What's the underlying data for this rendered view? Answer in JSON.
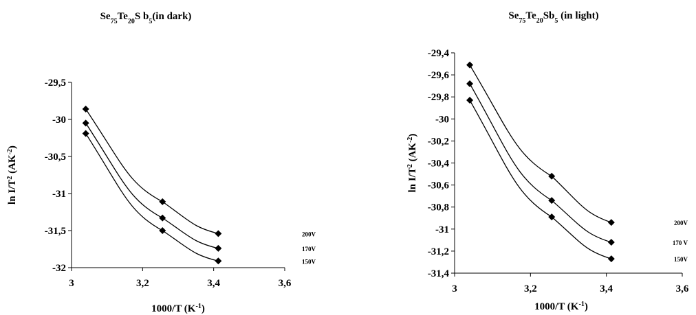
{
  "chart_data": [
    {
      "type": "line",
      "title_main": "Se",
      "title_parts": [
        {
          "t": "Se",
          "s": "n"
        },
        {
          "t": "75",
          "s": "sub"
        },
        {
          "t": "Te",
          "s": "n"
        },
        {
          "t": "20",
          "s": "sub"
        },
        {
          "t": "S b",
          "s": "n"
        },
        {
          "t": "5",
          "s": "sub"
        },
        {
          "t": "(in dark)",
          "s": "n"
        }
      ],
      "xlabel_parts": [
        {
          "t": "1000/T (K",
          "s": "n"
        },
        {
          "t": "-1",
          "s": "sup"
        },
        {
          "t": ")",
          "s": "n"
        }
      ],
      "ylabel_parts": [
        {
          "t": "ln I/T",
          "s": "n"
        },
        {
          "t": "2",
          "s": "sup"
        },
        {
          "t": " (AK",
          "s": "n"
        },
        {
          "t": "-2",
          "s": "sup"
        },
        {
          "t": ")",
          "s": "n"
        }
      ],
      "xlim": [
        3,
        3.6
      ],
      "ylim": [
        -32,
        -29.5
      ],
      "xticks": [
        3,
        3.2,
        3.4,
        3.6
      ],
      "xtick_labels": [
        "3",
        "3,2",
        "3,4",
        "3,6"
      ],
      "yticks": [
        -29.5,
        -30,
        -30.5,
        -31,
        -31.5,
        -32
      ],
      "ytick_labels": [
        "-29,5",
        "-30",
        "-30,5",
        "-31",
        "-31,5",
        "-32"
      ],
      "x": [
        3.04,
        3.256,
        3.413
      ],
      "series": [
        {
          "name": "200V",
          "values": [
            -29.86,
            -31.11,
            -31.54
          ]
        },
        {
          "name": "170V",
          "values": [
            -30.05,
            -31.33,
            -31.74
          ]
        },
        {
          "name": "150V",
          "values": [
            -30.19,
            -31.5,
            -31.91
          ]
        }
      ]
    },
    {
      "type": "line",
      "title_parts": [
        {
          "t": "Se",
          "s": "n"
        },
        {
          "t": "75",
          "s": "sub"
        },
        {
          "t": "Te",
          "s": "n"
        },
        {
          "t": "20",
          "s": "sub"
        },
        {
          "t": "Sb",
          "s": "n"
        },
        {
          "t": "5",
          "s": "sub"
        },
        {
          "t": " (in light)",
          "s": "n"
        }
      ],
      "xlabel_parts": [
        {
          "t": "1000/T (K",
          "s": "n"
        },
        {
          "t": "-1",
          "s": "sup"
        },
        {
          "t": ")",
          "s": "n"
        }
      ],
      "ylabel_parts": [
        {
          "t": "ln I/T",
          "s": "n"
        },
        {
          "t": "2",
          "s": "sup"
        },
        {
          "t": " (AK",
          "s": "n"
        },
        {
          "t": "-2",
          "s": "sup"
        },
        {
          "t": ")",
          "s": "n"
        }
      ],
      "xlim": [
        3,
        3.6
      ],
      "ylim": [
        -31.4,
        -29.4
      ],
      "xticks": [
        3,
        3.2,
        3.4,
        3.6
      ],
      "xtick_labels": [
        "3",
        "3,2",
        "3,4",
        "3,6"
      ],
      "yticks": [
        -29.4,
        -29.6,
        -29.8,
        -30,
        -30.2,
        -30.4,
        -30.6,
        -30.8,
        -31,
        -31.2,
        -31.4
      ],
      "ytick_labels": [
        "-29,4",
        "-29,6",
        "-29,8",
        "-30",
        "-30,2",
        "-30,4",
        "-30,6",
        "-30,8",
        "-31",
        "-31,2",
        "-31,4"
      ],
      "x": [
        3.04,
        3.256,
        3.413
      ],
      "series": [
        {
          "name": "200V",
          "values": [
            -29.51,
            -30.52,
            -30.94
          ]
        },
        {
          "name": "170 V",
          "values": [
            -29.68,
            -30.74,
            -31.12
          ]
        },
        {
          "name": "150V",
          "values": [
            -29.83,
            -30.89,
            -31.27
          ]
        }
      ]
    }
  ]
}
